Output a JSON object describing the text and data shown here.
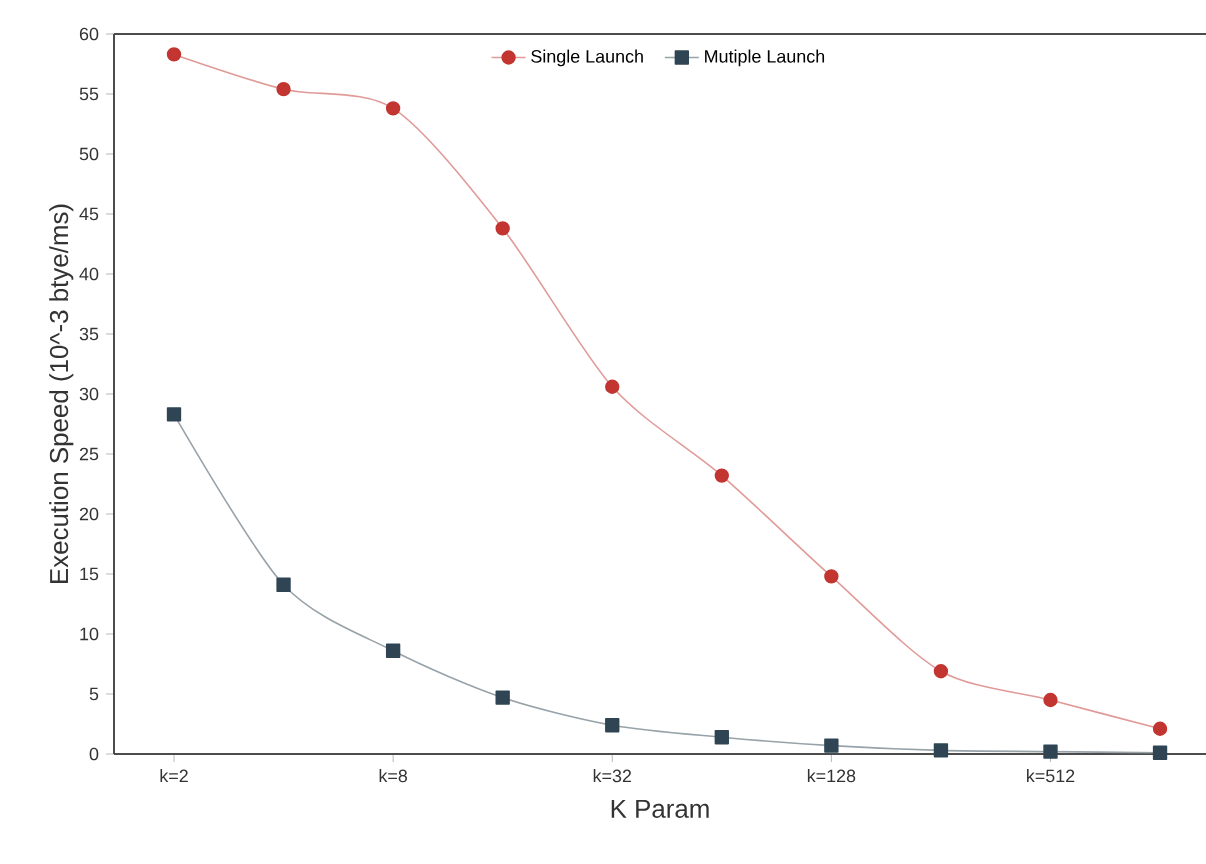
{
  "chart_data": {
    "type": "line",
    "xlabel": "K Param",
    "ylabel": "Execution Speed (10^-3 btye/ms)",
    "categories": [
      "k=2",
      null,
      "k=8",
      null,
      "k=32",
      null,
      "k=128",
      null,
      "k=512",
      null
    ],
    "series": [
      {
        "name": "Single Launch",
        "color": "#c23531",
        "marker": "circle",
        "values": [
          58.3,
          55.4,
          53.8,
          43.8,
          30.6,
          23.2,
          14.8,
          6.9,
          4.5,
          2.1
        ]
      },
      {
        "name": "Mutiple Launch",
        "color": "#2f4554",
        "marker": "square",
        "values": [
          28.3,
          14.1,
          8.6,
          4.7,
          2.4,
          1.4,
          0.7,
          0.3,
          0.2,
          0.1
        ]
      }
    ],
    "ylim": [
      0,
      60
    ],
    "yticks": [
      0,
      5,
      10,
      15,
      20,
      25,
      30,
      35,
      40,
      45,
      50,
      55,
      60
    ],
    "grid": false,
    "legend": "top",
    "line_style": "solid"
  }
}
